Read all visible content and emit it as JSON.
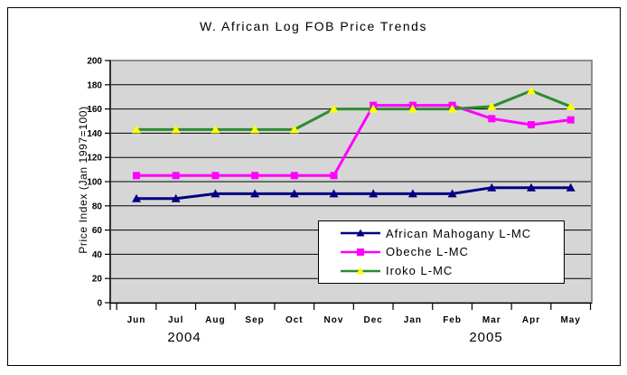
{
  "chart_data": {
    "type": "line",
    "title": "W. African Log FOB Price Trends",
    "ylabel": "Price Index (Jan 1997=100)",
    "xlabel": "",
    "ylim": [
      0,
      200
    ],
    "ytick_step": 20,
    "grid": "horizontal",
    "plot_background": "#D6D6D6",
    "legend_position": "inside-bottom-right",
    "categories": [
      "Jun",
      "Jul",
      "Aug",
      "Sep",
      "Oct",
      "Nov",
      "Dec",
      "Jan",
      "Feb",
      "Mar",
      "Apr",
      "May"
    ],
    "year_labels": [
      "2004",
      "2005"
    ],
    "series": [
      {
        "name": "African Mahogany L-MC",
        "line_color": "#000080",
        "marker": "triangle",
        "marker_color": "#000080",
        "values": [
          86,
          86,
          90,
          90,
          90,
          90,
          90,
          90,
          90,
          95,
          95,
          95
        ]
      },
      {
        "name": "Obeche L-MC",
        "line_color": "#FF00FF",
        "marker": "square",
        "marker_color": "#FF00FF",
        "values": [
          105,
          105,
          105,
          105,
          105,
          105,
          163,
          163,
          163,
          152,
          147,
          151
        ]
      },
      {
        "name": "Iroko L-MC",
        "line_color": "#2E8B32",
        "marker": "triangle",
        "marker_color": "#FFFF00",
        "values": [
          143,
          143,
          143,
          143,
          143,
          160,
          160,
          160,
          160,
          162,
          175,
          162
        ]
      }
    ]
  }
}
